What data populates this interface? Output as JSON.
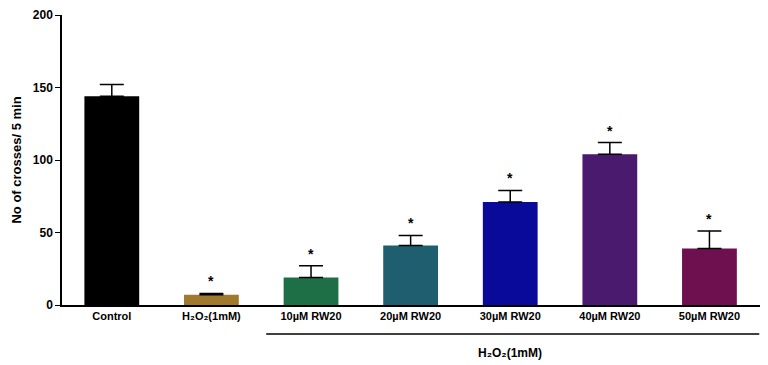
{
  "chart_data": {
    "type": "bar",
    "y_label": "No of crosses/ 5 min",
    "categories": [
      "Control",
      "H₂O₂(1mM)",
      "10µM RW20",
      "20µM RW20",
      "30µM RW20",
      "40µM RW20",
      "50µM RW20"
    ],
    "values": [
      144,
      7,
      19,
      41,
      71,
      104,
      39
    ],
    "error": [
      8,
      1,
      8,
      7,
      8,
      8,
      12
    ],
    "colors": [
      "#000000",
      "#a0782e",
      "#1e6e46",
      "#1e5e6e",
      "#0a0a9a",
      "#4a1a6e",
      "#6e1050"
    ],
    "significance": [
      null,
      "*",
      "*",
      "*",
      "*",
      "*",
      "*"
    ],
    "group_label": {
      "text": "H₂O₂(1mM)",
      "from": "10µM RW20",
      "to": "50µM RW20"
    },
    "ylim": [
      0,
      200
    ],
    "yticks": [
      0,
      50,
      100,
      150,
      200
    ],
    "grid": false
  }
}
